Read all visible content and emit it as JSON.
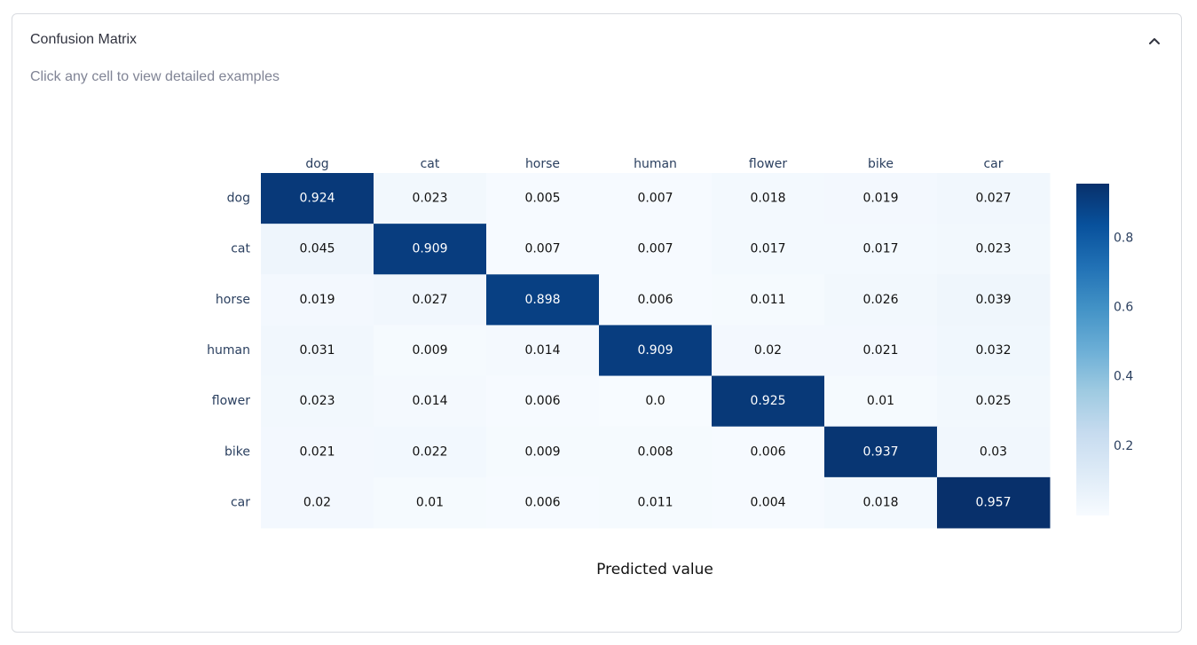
{
  "panel": {
    "title": "Confusion Matrix",
    "subtitle": "Click any cell to view detailed examples",
    "collapse_icon": "chevron-up-icon"
  },
  "chart_data": {
    "type": "heatmap",
    "x_categories": [
      "dog",
      "cat",
      "horse",
      "human",
      "flower",
      "bike",
      "car"
    ],
    "y_categories": [
      "dog",
      "cat",
      "horse",
      "human",
      "flower",
      "bike",
      "car"
    ],
    "values": [
      [
        0.924,
        0.023,
        0.005,
        0.007,
        0.018,
        0.019,
        0.027
      ],
      [
        0.045,
        0.909,
        0.007,
        0.007,
        0.017,
        0.017,
        0.023
      ],
      [
        0.019,
        0.027,
        0.898,
        0.006,
        0.011,
        0.026,
        0.039
      ],
      [
        0.031,
        0.009,
        0.014,
        0.909,
        0.02,
        0.021,
        0.032
      ],
      [
        0.023,
        0.014,
        0.006,
        0.0,
        0.925,
        0.01,
        0.025
      ],
      [
        0.021,
        0.022,
        0.009,
        0.008,
        0.006,
        0.937,
        0.03
      ],
      [
        0.02,
        0.01,
        0.006,
        0.011,
        0.004,
        0.018,
        0.957
      ]
    ],
    "value_labels": [
      [
        "0.924",
        "0.023",
        "0.005",
        "0.007",
        "0.018",
        "0.019",
        "0.027"
      ],
      [
        "0.045",
        "0.909",
        "0.007",
        "0.007",
        "0.017",
        "0.017",
        "0.023"
      ],
      [
        "0.019",
        "0.027",
        "0.898",
        "0.006",
        "0.011",
        "0.026",
        "0.039"
      ],
      [
        "0.031",
        "0.009",
        "0.014",
        "0.909",
        "0.02",
        "0.021",
        "0.032"
      ],
      [
        "0.023",
        "0.014",
        "0.006",
        "0.0",
        "0.925",
        "0.01",
        "0.025"
      ],
      [
        "0.021",
        "0.022",
        "0.009",
        "0.008",
        "0.006",
        "0.937",
        "0.03"
      ],
      [
        "0.02",
        "0.01",
        "0.006",
        "0.011",
        "0.004",
        "0.018",
        "0.957"
      ]
    ],
    "xlabel": "Predicted value",
    "ylabel": "",
    "x_axis_side": "top",
    "colorscale": "Blues",
    "colorbar": {
      "range": [
        0,
        0.957
      ],
      "ticks": [
        0.2,
        0.4,
        0.6,
        0.8
      ],
      "tick_labels": [
        "0.2",
        "0.4",
        "0.6",
        "0.8"
      ]
    },
    "grid": false
  }
}
